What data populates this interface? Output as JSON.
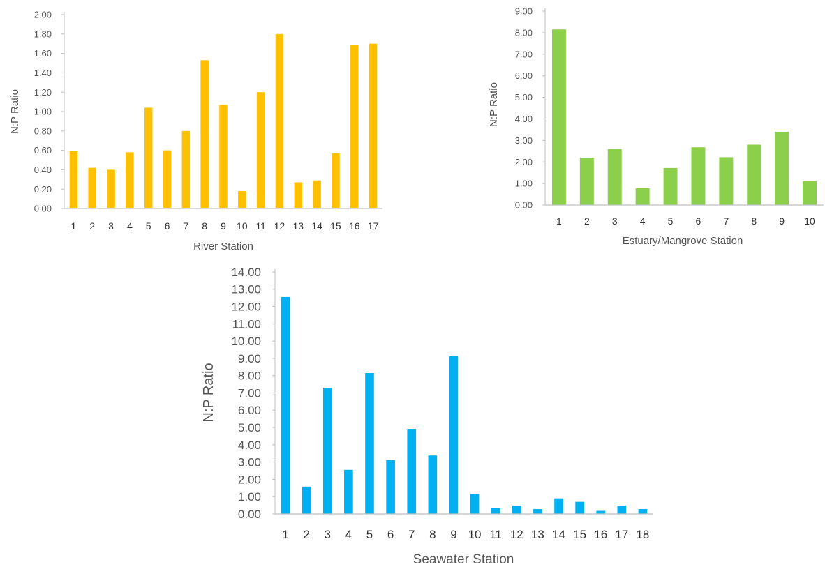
{
  "chart_data": [
    {
      "id": "river",
      "type": "bar",
      "title": "",
      "xlabel": "River Station",
      "ylabel": "N:P Ratio",
      "ylim": [
        0,
        2.0
      ],
      "ytick_step": 0.2,
      "ytick_decimals": 2,
      "categories": [
        "1",
        "2",
        "3",
        "4",
        "5",
        "6",
        "7",
        "8",
        "9",
        "10",
        "11",
        "12",
        "13",
        "14",
        "15",
        "16",
        "17"
      ],
      "values": [
        0.59,
        0.42,
        0.4,
        0.58,
        1.04,
        0.6,
        0.8,
        1.53,
        1.07,
        0.18,
        1.2,
        1.8,
        0.27,
        0.29,
        0.57,
        1.69,
        1.7
      ],
      "color": "#FFC000",
      "grid": false,
      "legend": "none"
    },
    {
      "id": "estuary",
      "type": "bar",
      "title": "",
      "xlabel": "Estuary/Mangrove Station",
      "ylabel": "N:P Ratio",
      "ylim": [
        0,
        9.0
      ],
      "ytick_step": 1.0,
      "ytick_decimals": 2,
      "categories": [
        "1",
        "2",
        "3",
        "4",
        "5",
        "6",
        "7",
        "8",
        "9",
        "10"
      ],
      "values": [
        8.15,
        2.2,
        2.6,
        0.78,
        1.72,
        2.68,
        2.22,
        2.8,
        3.4,
        1.1
      ],
      "color": "#8BCF4B",
      "grid": false,
      "legend": "none"
    },
    {
      "id": "seawater",
      "type": "bar",
      "title": "",
      "xlabel": "Seawater Station",
      "ylabel": "N:P Ratio",
      "ylim": [
        0,
        14.0
      ],
      "ytick_step": 1.0,
      "ytick_decimals": 2,
      "categories": [
        "1",
        "2",
        "3",
        "4",
        "5",
        "6",
        "7",
        "8",
        "9",
        "10",
        "11",
        "12",
        "13",
        "14",
        "15",
        "16",
        "17",
        "18"
      ],
      "values": [
        12.55,
        1.58,
        7.3,
        2.55,
        8.15,
        3.12,
        4.92,
        3.38,
        9.12,
        1.15,
        0.33,
        0.48,
        0.28,
        0.9,
        0.7,
        0.18,
        0.48,
        0.28
      ],
      "color": "#00B0F0",
      "grid": false,
      "legend": "none"
    }
  ]
}
